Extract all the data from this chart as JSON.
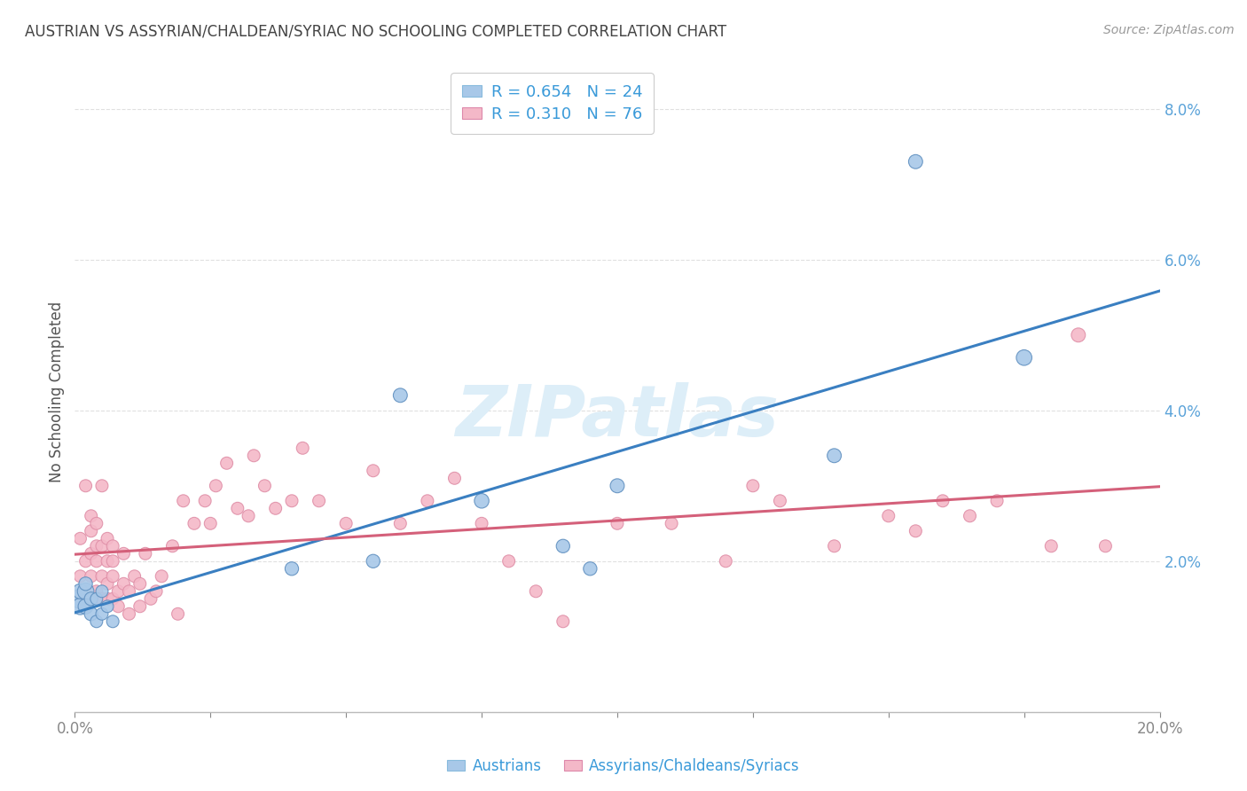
{
  "title": "AUSTRIAN VS ASSYRIAN/CHALDEAN/SYRIAC NO SCHOOLING COMPLETED CORRELATION CHART",
  "source": "Source: ZipAtlas.com",
  "ylabel": "No Schooling Completed",
  "xlim": [
    0.0,
    0.2
  ],
  "ylim": [
    0.0,
    0.085
  ],
  "color_blue": "#a8c8e8",
  "color_pink": "#f4b8c8",
  "color_blue_line": "#3a7fc1",
  "color_pink_line": "#d4607a",
  "watermark_color": "#ddeef8",
  "bg_color": "#ffffff",
  "grid_color": "#dddddd",
  "title_color": "#444444",
  "tick_color_y": "#5ba3d9",
  "tick_color_x": "#888888",
  "source_color": "#999999",
  "legend_text_color": "#3a9ad9",
  "austrians_x": [
    0.001,
    0.001,
    0.001,
    0.002,
    0.002,
    0.002,
    0.003,
    0.003,
    0.004,
    0.004,
    0.005,
    0.005,
    0.006,
    0.007,
    0.04,
    0.055,
    0.06,
    0.075,
    0.09,
    0.095,
    0.1,
    0.14,
    0.155,
    0.175
  ],
  "austrians_y": [
    0.015,
    0.014,
    0.016,
    0.016,
    0.014,
    0.017,
    0.013,
    0.015,
    0.012,
    0.015,
    0.013,
    0.016,
    0.014,
    0.012,
    0.019,
    0.02,
    0.042,
    0.028,
    0.022,
    0.019,
    0.03,
    0.034,
    0.073,
    0.047
  ],
  "austrians_sizes": [
    250,
    180,
    150,
    180,
    150,
    120,
    120,
    120,
    100,
    100,
    100,
    100,
    100,
    100,
    120,
    120,
    130,
    140,
    120,
    120,
    130,
    130,
    130,
    160
  ],
  "assyrians_x": [
    0.001,
    0.001,
    0.002,
    0.002,
    0.003,
    0.003,
    0.003,
    0.003,
    0.004,
    0.004,
    0.004,
    0.004,
    0.005,
    0.005,
    0.005,
    0.005,
    0.006,
    0.006,
    0.006,
    0.006,
    0.007,
    0.007,
    0.007,
    0.007,
    0.008,
    0.008,
    0.009,
    0.009,
    0.01,
    0.01,
    0.011,
    0.012,
    0.012,
    0.013,
    0.014,
    0.015,
    0.016,
    0.018,
    0.019,
    0.02,
    0.022,
    0.024,
    0.025,
    0.026,
    0.028,
    0.03,
    0.032,
    0.033,
    0.035,
    0.037,
    0.04,
    0.042,
    0.045,
    0.05,
    0.055,
    0.06,
    0.065,
    0.07,
    0.075,
    0.08,
    0.085,
    0.09,
    0.1,
    0.11,
    0.12,
    0.125,
    0.13,
    0.14,
    0.15,
    0.155,
    0.16,
    0.165,
    0.17,
    0.18,
    0.185,
    0.19
  ],
  "assyrians_y": [
    0.018,
    0.023,
    0.02,
    0.03,
    0.018,
    0.021,
    0.024,
    0.026,
    0.016,
    0.02,
    0.022,
    0.025,
    0.015,
    0.018,
    0.022,
    0.03,
    0.015,
    0.017,
    0.02,
    0.023,
    0.015,
    0.018,
    0.02,
    0.022,
    0.014,
    0.016,
    0.017,
    0.021,
    0.013,
    0.016,
    0.018,
    0.014,
    0.017,
    0.021,
    0.015,
    0.016,
    0.018,
    0.022,
    0.013,
    0.028,
    0.025,
    0.028,
    0.025,
    0.03,
    0.033,
    0.027,
    0.026,
    0.034,
    0.03,
    0.027,
    0.028,
    0.035,
    0.028,
    0.025,
    0.032,
    0.025,
    0.028,
    0.031,
    0.025,
    0.02,
    0.016,
    0.012,
    0.025,
    0.025,
    0.02,
    0.03,
    0.028,
    0.022,
    0.026,
    0.024,
    0.028,
    0.026,
    0.028,
    0.022,
    0.05,
    0.022
  ],
  "assyrians_sizes": [
    100,
    100,
    100,
    100,
    100,
    100,
    100,
    100,
    100,
    100,
    100,
    100,
    100,
    100,
    100,
    100,
    100,
    100,
    100,
    100,
    100,
    100,
    100,
    100,
    100,
    100,
    100,
    100,
    100,
    100,
    100,
    100,
    100,
    100,
    100,
    100,
    100,
    100,
    100,
    100,
    100,
    100,
    100,
    100,
    100,
    100,
    100,
    100,
    100,
    100,
    100,
    100,
    100,
    100,
    100,
    100,
    100,
    100,
    100,
    100,
    100,
    100,
    100,
    100,
    100,
    100,
    100,
    100,
    100,
    100,
    100,
    100,
    100,
    100,
    130,
    100
  ]
}
